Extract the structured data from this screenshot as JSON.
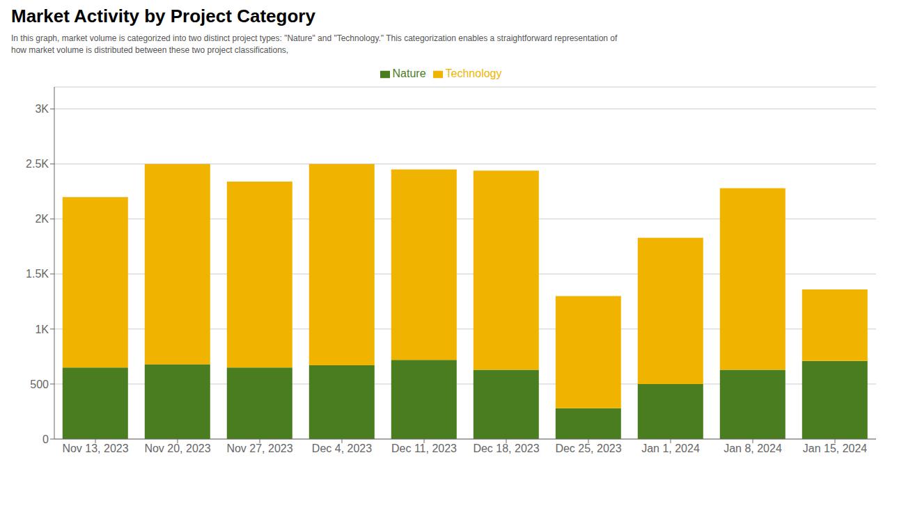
{
  "chart_data": {
    "type": "bar",
    "title": "Market Activity by Project Category",
    "subtitle": [
      "In this graph, market volume is categorized into two distinct project types: \"Nature\" and \"Technology.\" This categorization enables a straightforward representation of",
      "how market volume is distributed between these two project classifications,"
    ],
    "categories": [
      "Nov 13, 2023",
      "Nov 20, 2023",
      "Nov 27, 2023",
      "Dec 4, 2023",
      "Dec 11, 2023",
      "Dec 18, 2023",
      "Dec 25, 2023",
      "Jan 1, 2024",
      "Jan 8, 2024",
      "Jan 15, 2024"
    ],
    "series": [
      {
        "name": "Nature",
        "color": "#4a7c20",
        "values": [
          650,
          680,
          650,
          670,
          720,
          630,
          280,
          500,
          630,
          710
        ]
      },
      {
        "name": "Technology",
        "color": "#f0b400",
        "values": [
          1550,
          1820,
          1690,
          1830,
          1730,
          1810,
          1020,
          1330,
          1650,
          650
        ]
      }
    ],
    "stacked": true,
    "ylim": [
      0,
      3200
    ],
    "yticks": [
      0,
      500,
      {
        "value": 1000,
        "label": "1K"
      },
      {
        "value": 1500,
        "label": "1.5K"
      },
      {
        "value": 2000,
        "label": "2K"
      },
      {
        "value": 2500,
        "label": "2.5K"
      },
      {
        "value": 3000,
        "label": "3K"
      }
    ],
    "grid": true,
    "legend": "top"
  }
}
